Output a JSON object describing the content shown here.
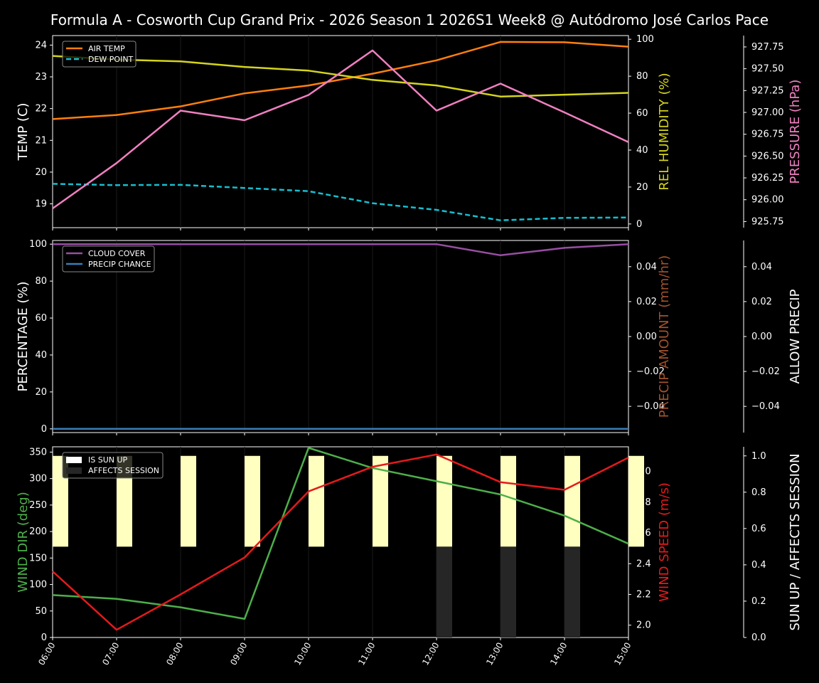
{
  "title": "Formula A - Cosworth Cup Grand Prix - 2026 Season 1 2026S1 Week8 @ Autódromo José Carlos Pace",
  "colors": {
    "air_temp": "#ff7f0e",
    "dew_point": "#17becf",
    "humidity": "#d4d41c",
    "pressure": "#f080c0",
    "cloud_cover": "#984ea3",
    "precip_chance": "#377eb8",
    "precip_amount": "#a0522d",
    "wind_dir": "#4daf4a",
    "wind_speed": "#e41a1c",
    "sun_up": "#ffffc0",
    "affects_session": "#262626"
  },
  "chart_data": [
    {
      "type": "line",
      "x": [
        "06:00",
        "07:00",
        "08:00",
        "09:00",
        "10:00",
        "11:00",
        "12:00",
        "13:00",
        "14:00",
        "15:00"
      ],
      "ylabel_left": "TEMP (C)",
      "ylabel_right": "REL HUMIDITY (%)",
      "ylabel_right2": "PRESSURE (hPa)",
      "yticks_left": [
        "19",
        "20",
        "21",
        "22",
        "23",
        "24"
      ],
      "yticks_right": [
        "0",
        "20",
        "40",
        "60",
        "80",
        "100"
      ],
      "yticks_right2": [
        "925.75",
        "926.00",
        "926.25",
        "926.50",
        "926.75",
        "927.00",
        "927.25",
        "927.50",
        "927.75"
      ],
      "ylim_left": [
        18.25,
        24.3
      ],
      "ylim_right": [
        -2,
        102
      ],
      "ylim_right2": [
        925.68,
        927.88
      ],
      "legend": [
        "AIR TEMP",
        "DEW POINT"
      ],
      "legend_position": "top-left",
      "series": [
        {
          "name": "AIR TEMP",
          "axis": "left",
          "values": [
            21.67,
            21.8,
            22.07,
            22.48,
            22.73,
            23.1,
            23.52,
            24.1,
            24.09,
            23.95
          ]
        },
        {
          "name": "DEW POINT",
          "axis": "left",
          "dashed": true,
          "values": [
            19.63,
            19.59,
            19.6,
            19.5,
            19.4,
            19.02,
            18.81,
            18.48,
            18.56,
            18.57
          ]
        },
        {
          "name": "REL HUMIDITY",
          "axis": "right",
          "values": [
            91,
            89,
            88,
            85,
            83,
            78,
            75,
            69,
            70,
            71
          ]
        },
        {
          "name": "PRESSURE",
          "axis": "right2",
          "values": [
            925.9,
            926.42,
            927.02,
            926.91,
            927.2,
            927.71,
            927.02,
            927.33,
            927.0,
            926.66
          ]
        }
      ]
    },
    {
      "type": "line",
      "x": [
        "06:00",
        "07:00",
        "08:00",
        "09:00",
        "10:00",
        "11:00",
        "12:00",
        "13:00",
        "14:00",
        "15:00"
      ],
      "ylabel_left": "PERCENTAGE (%)",
      "ylabel_right": "PRECIP AMOUNT (mm/hr)",
      "ylabel_right2": "ALLOW PRECIP",
      "yticks_left": [
        "0",
        "20",
        "40",
        "60",
        "80",
        "100"
      ],
      "yticks_right": [
        "−0.04",
        "−0.02",
        "0.00",
        "0.02",
        "0.04"
      ],
      "yticks_right2": [
        "−0.04",
        "−0.02",
        "0.00",
        "0.02",
        "0.04"
      ],
      "ylim_left": [
        -2,
        102
      ],
      "ylim_right": [
        -0.055,
        0.055
      ],
      "legend": [
        "CLOUD COVER",
        "PRECIP CHANCE"
      ],
      "legend_position": "top-left",
      "series": [
        {
          "name": "CLOUD COVER",
          "axis": "left",
          "values": [
            100,
            100,
            100,
            100,
            100,
            100,
            100,
            94,
            98,
            100
          ]
        },
        {
          "name": "PRECIP CHANCE",
          "axis": "left",
          "values": [
            0,
            0,
            0,
            0,
            0,
            0,
            0,
            0,
            0,
            0
          ]
        }
      ]
    },
    {
      "type": "line",
      "x": [
        "06:00",
        "07:00",
        "08:00",
        "09:00",
        "10:00",
        "11:00",
        "12:00",
        "13:00",
        "14:00",
        "15:00"
      ],
      "ylabel_left": "WIND DIR (deg)",
      "ylabel_right": "WIND SPEED (m/s)",
      "ylabel_right2": "SUN UP / AFFECTS SESSION",
      "yticks_left": [
        "0",
        "50",
        "100",
        "150",
        "200",
        "250",
        "300",
        "350"
      ],
      "yticks_right": [
        "2.0",
        "2.2",
        "2.4",
        "2.6",
        "2.8",
        "3.0"
      ],
      "yticks_right2": [
        "0.0",
        "0.2",
        "0.4",
        "0.6",
        "0.8",
        "1.0"
      ],
      "ylim_left": [
        0,
        360
      ],
      "ylim_right": [
        1.92,
        3.16
      ],
      "ylim_right2": [
        0,
        1.05
      ],
      "legend": [
        "IS SUN UP",
        "AFFECTS SESSION"
      ],
      "legend_position": "top-left",
      "series": [
        {
          "name": "WIND DIR",
          "axis": "left",
          "values": [
            80,
            73,
            57,
            35,
            358,
            320,
            295,
            270,
            230,
            177
          ]
        },
        {
          "name": "WIND SPEED",
          "axis": "right",
          "values": [
            2.35,
            1.97,
            2.2,
            2.44,
            2.87,
            3.03,
            3.11,
            2.93,
            2.88,
            3.09
          ]
        }
      ],
      "bars": [
        {
          "name": "IS SUN UP",
          "values": [
            1,
            1,
            1,
            1,
            1,
            1,
            1,
            1,
            1,
            1
          ],
          "band": [
            0.5,
            1.0
          ]
        },
        {
          "name": "AFFECTS SESSION",
          "values": [
            0,
            0,
            0,
            0,
            0,
            0,
            1,
            1,
            1,
            0
          ],
          "band": [
            0,
            0.5
          ]
        }
      ]
    }
  ]
}
